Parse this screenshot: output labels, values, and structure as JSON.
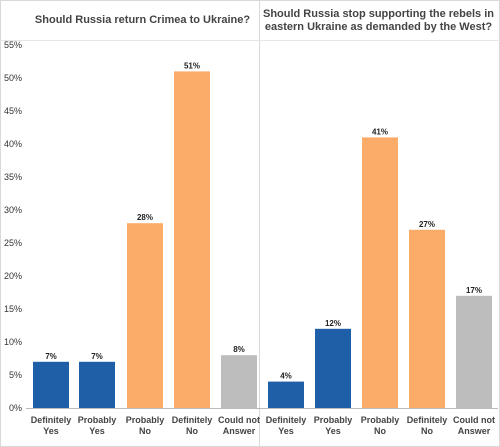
{
  "chart_data": [
    {
      "type": "bar",
      "title": "Should Russia return Crimea to Ukraine?",
      "categories": [
        [
          "Definitely",
          "Yes"
        ],
        [
          "Probably",
          "Yes"
        ],
        [
          "Probably",
          "No"
        ],
        [
          "Definitely",
          "No"
        ],
        [
          "Could not",
          "Answer"
        ]
      ],
      "values": [
        7,
        7,
        28,
        51,
        8
      ],
      "value_labels": [
        "7%",
        "7%",
        "28%",
        "51%",
        "8%"
      ],
      "colors": [
        "#1f5fa7",
        "#1f5fa7",
        "#fbac68",
        "#fbac68",
        "#bdbdbd"
      ],
      "ylim": [
        0,
        55
      ],
      "yticks": [
        0,
        5,
        10,
        15,
        20,
        25,
        30,
        35,
        40,
        45,
        50,
        55
      ],
      "ytick_labels": [
        "0%",
        "5%",
        "10%",
        "15%",
        "20%",
        "25%",
        "30%",
        "35%",
        "40%",
        "45%",
        "50%",
        "55%"
      ],
      "grid": false
    },
    {
      "type": "bar",
      "title": [
        "Should Russia stop supporting the rebels in",
        "eastern Ukraine as demanded by the West?"
      ],
      "categories": [
        [
          "Definitely",
          "Yes"
        ],
        [
          "Probably",
          "Yes"
        ],
        [
          "Probably",
          "No"
        ],
        [
          "Definitely",
          "No"
        ],
        [
          "Could not",
          "Answer"
        ]
      ],
      "values": [
        4,
        12,
        41,
        27,
        17
      ],
      "value_labels": [
        "4%",
        "12%",
        "41%",
        "27%",
        "17%"
      ],
      "colors": [
        "#1f5fa7",
        "#1f5fa7",
        "#fbac68",
        "#fbac68",
        "#bdbdbd"
      ],
      "ylim": [
        0,
        55
      ],
      "grid": false
    }
  ]
}
